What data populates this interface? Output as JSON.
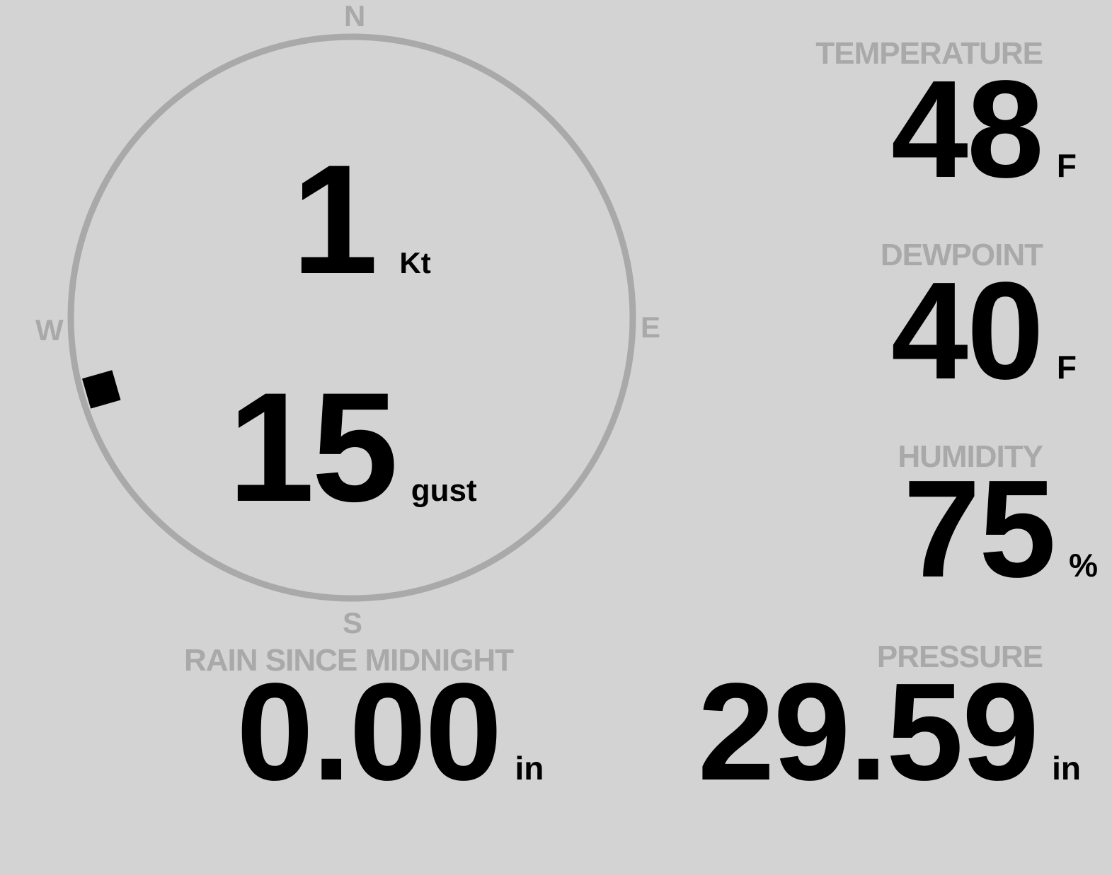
{
  "colors": {
    "background": "#d3d3d3",
    "muted": "#a9a9a9",
    "text": "#000000"
  },
  "compass": {
    "north": "N",
    "east": "E",
    "south": "S",
    "west": "W",
    "wind_direction_deg": 254,
    "marker_icon": "wind-direction-marker"
  },
  "wind": {
    "speed": "1",
    "speed_unit": "Kt",
    "gust": "15",
    "gust_unit": "gust"
  },
  "temperature": {
    "label": "TEMPERATURE",
    "value": "48",
    "unit": "F"
  },
  "dewpoint": {
    "label": "DEWPOINT",
    "value": "40",
    "unit": "F"
  },
  "humidity": {
    "label": "HUMIDITY",
    "value": "75",
    "unit": "%"
  },
  "rain": {
    "label": "RAIN SINCE MIDNIGHT",
    "value": "0.00",
    "unit": "in"
  },
  "pressure": {
    "label": "PRESSURE",
    "value": "29.59",
    "unit": "in"
  }
}
